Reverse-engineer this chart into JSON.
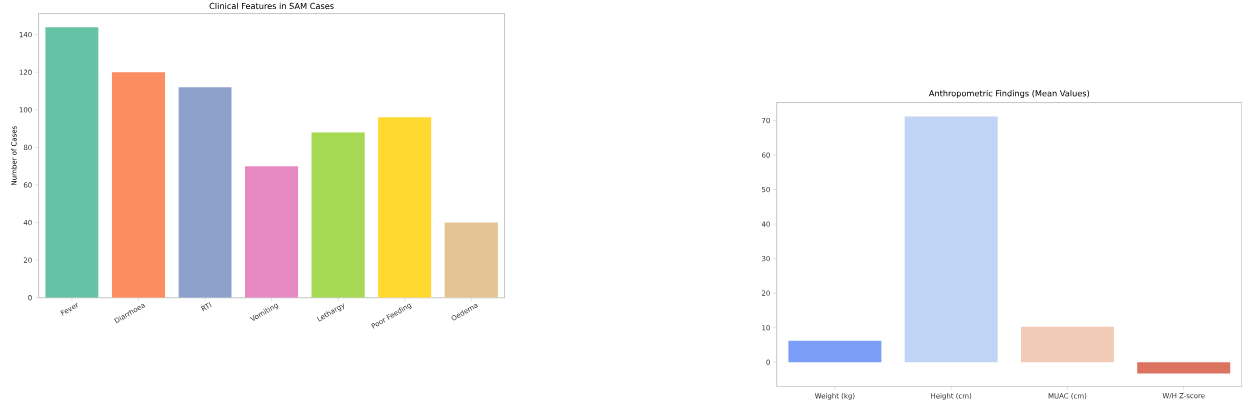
{
  "chart_data": [
    {
      "type": "bar",
      "title": "Clinical Features in SAM Cases",
      "ylabel": "Number of Cases",
      "categories": [
        "Fever",
        "Diarrhoea",
        "RTI",
        "Vomiting",
        "Lethargy",
        "Poor Feeding",
        "Oedema"
      ],
      "values": [
        144,
        120,
        112,
        70,
        88,
        96,
        40
      ],
      "colors": [
        "#66c2a5",
        "#fc8d62",
        "#8da0cb",
        "#e78ac3",
        "#a6d854",
        "#ffd92f",
        "#e5c494"
      ],
      "ylim": [
        0,
        151.2
      ],
      "yticks": [
        0,
        20,
        40,
        60,
        80,
        100,
        120,
        140
      ],
      "grid": false
    },
    {
      "type": "bar",
      "title": "Anthropometric Findings (Mean Values)",
      "categories": [
        "Weight (kg)",
        "Height (cm)",
        "MUAC (cm)",
        "W/H Z-score"
      ],
      "values": [
        6.2,
        71.2,
        10.3,
        -3.3
      ],
      "colors": [
        "#7b9ff9",
        "#c0d4f5",
        "#f2cbb7",
        "#dc7360"
      ],
      "ylim": [
        -7.1,
        75.2
      ],
      "yticks": [
        0,
        10,
        20,
        30,
        40,
        50,
        60,
        70
      ],
      "grid": false
    }
  ]
}
